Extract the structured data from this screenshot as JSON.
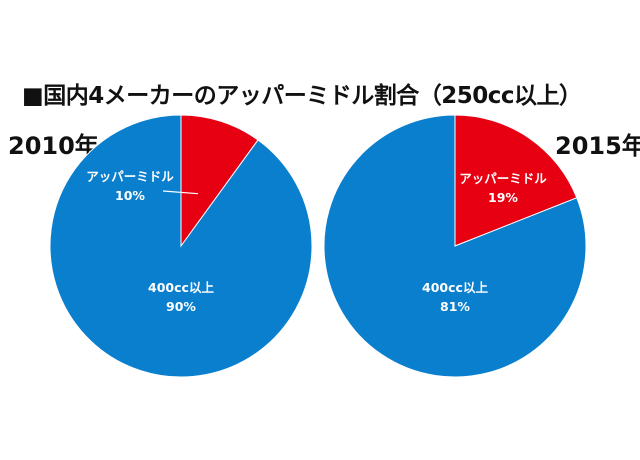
{
  "title": "■国内4メーカーのアッパーミドル割合（250cc以上）",
  "colors": {
    "upper_middle": "#e60012",
    "over400": "#0a7fce",
    "label_text": "#ffffff"
  },
  "chart_data": [
    {
      "type": "pie",
      "title": "2010年",
      "slices": [
        {
          "label": "アッパーミドル",
          "percent_label": "10%",
          "value": 10,
          "color": "#e60012"
        },
        {
          "label": "400cc以上",
          "percent_label": "90%",
          "value": 90,
          "color": "#0a7fce"
        }
      ],
      "start": "12 o'clock",
      "direction": "clockwise"
    },
    {
      "type": "pie",
      "title": "2015年",
      "slices": [
        {
          "label": "アッパーミドル",
          "percent_label": "19%",
          "value": 19,
          "color": "#e60012"
        },
        {
          "label": "400cc以上",
          "percent_label": "81%",
          "value": 81,
          "color": "#0a7fce"
        }
      ],
      "start": "12 o'clock",
      "direction": "clockwise"
    }
  ]
}
